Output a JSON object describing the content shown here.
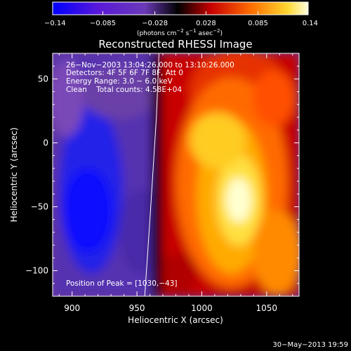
{
  "chart_data": {
    "type": "heatmap",
    "title": "Reconstructed RHESSI Image",
    "xlabel": "Heliocentric X (arcsec)",
    "ylabel": "Heliocentric Y (arcsec)",
    "xlim": [
      885,
      1075
    ],
    "ylim": [
      -120,
      70
    ],
    "x_ticks": [
      900,
      950,
      1000,
      1050
    ],
    "y_ticks": [
      50,
      0,
      -50,
      -100
    ],
    "x_tick_labels": [
      "900",
      "950",
      "1000",
      "1050"
    ],
    "y_tick_labels": [
      "50",
      "0",
      "−50",
      "−100"
    ],
    "colorbar": {
      "ticks": [
        -0.14,
        -0.085,
        -0.028,
        0.028,
        0.085,
        0.14
      ],
      "tick_labels": [
        "−0.14",
        "−0.085",
        "−0.028",
        "0.028",
        "0.085",
        "0.14"
      ],
      "range": [
        -0.14,
        0.14
      ],
      "label_prefix": "(photons cm",
      "label_exp1": "−2",
      "label_mid": " s",
      "label_exp2": "−1",
      "label_mid2": " asec",
      "label_suffix": ")"
    },
    "annotations": {
      "time": "26−Nov−2003 13:04:26.000 to 13:10:26.000",
      "detectors": "Detectors: 4F 5F 6F 7F 8F, Att 0",
      "energy": "Energy Range: 3.0 − 6.0 keV",
      "clean": "Clean    Total counts: 4.58E+04",
      "peak": "Position of Peak = [1030,−43]"
    },
    "peak": {
      "x": 1030,
      "y": -43
    },
    "limb_line": [
      [
        967,
        70
      ],
      [
        965,
        20
      ],
      [
        960,
        -60
      ],
      [
        956,
        -120
      ]
    ],
    "footer": "30−May−2013 19:59"
  }
}
